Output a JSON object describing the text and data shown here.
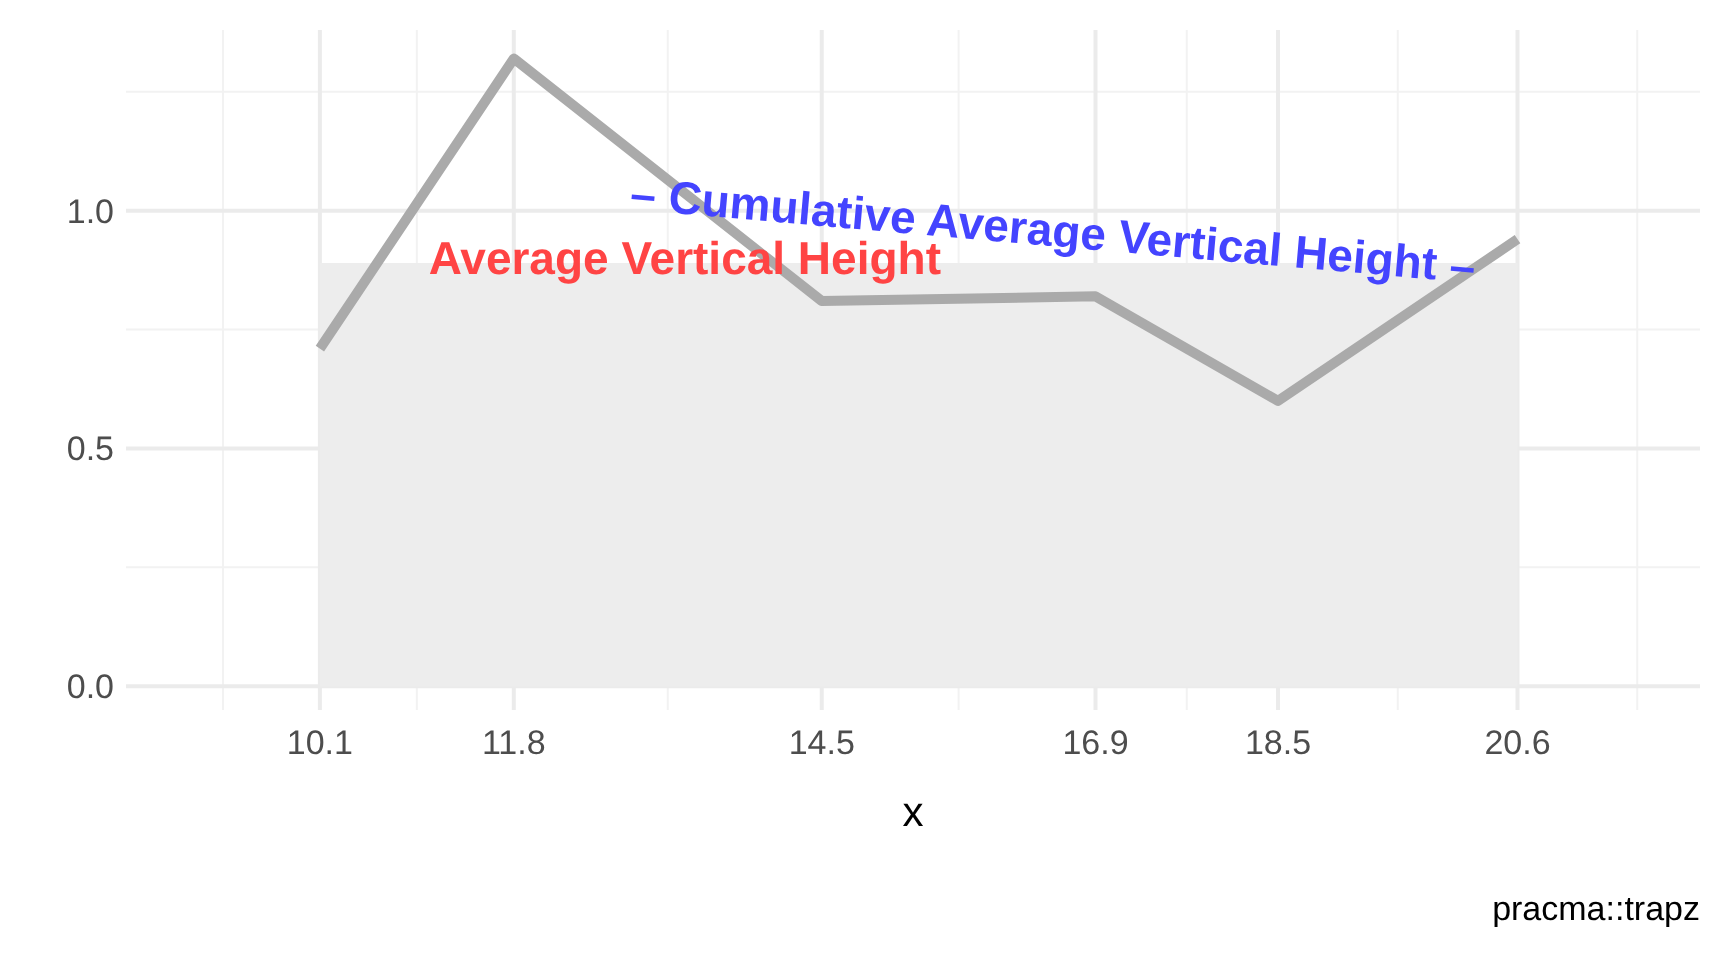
{
  "chart_data": {
    "type": "line",
    "xlabel": "x",
    "xlim": [
      8.4,
      22.2
    ],
    "xticks": [
      10.1,
      11.8,
      14.5,
      16.9,
      18.5,
      20.6
    ],
    "ylim": [
      -0.05,
      1.38
    ],
    "yticks": [
      {
        "value": 0,
        "label": "0.0"
      },
      0.5,
      {
        "value": 1,
        "label": "1.0"
      }
    ],
    "grid": true,
    "series": [
      {
        "type": "area",
        "color": "#ededed",
        "x": [
          10.1,
          20.6
        ],
        "values": [
          0.89,
          0.89
        ]
      },
      {
        "color": "#aaaaaa",
        "x": [
          10.1,
          11.8,
          14.5,
          16.9,
          18.5,
          20.6
        ],
        "values": [
          0.71,
          1.32,
          0.81,
          0.82,
          0.6,
          0.94
        ]
      }
    ],
    "annotations": [
      {
        "text": "Average Vertical Height",
        "x": 13.3,
        "y": 0.9
      },
      "– Cumulative Average Vertical Height –",
      "pracma::trapz"
    ]
  }
}
